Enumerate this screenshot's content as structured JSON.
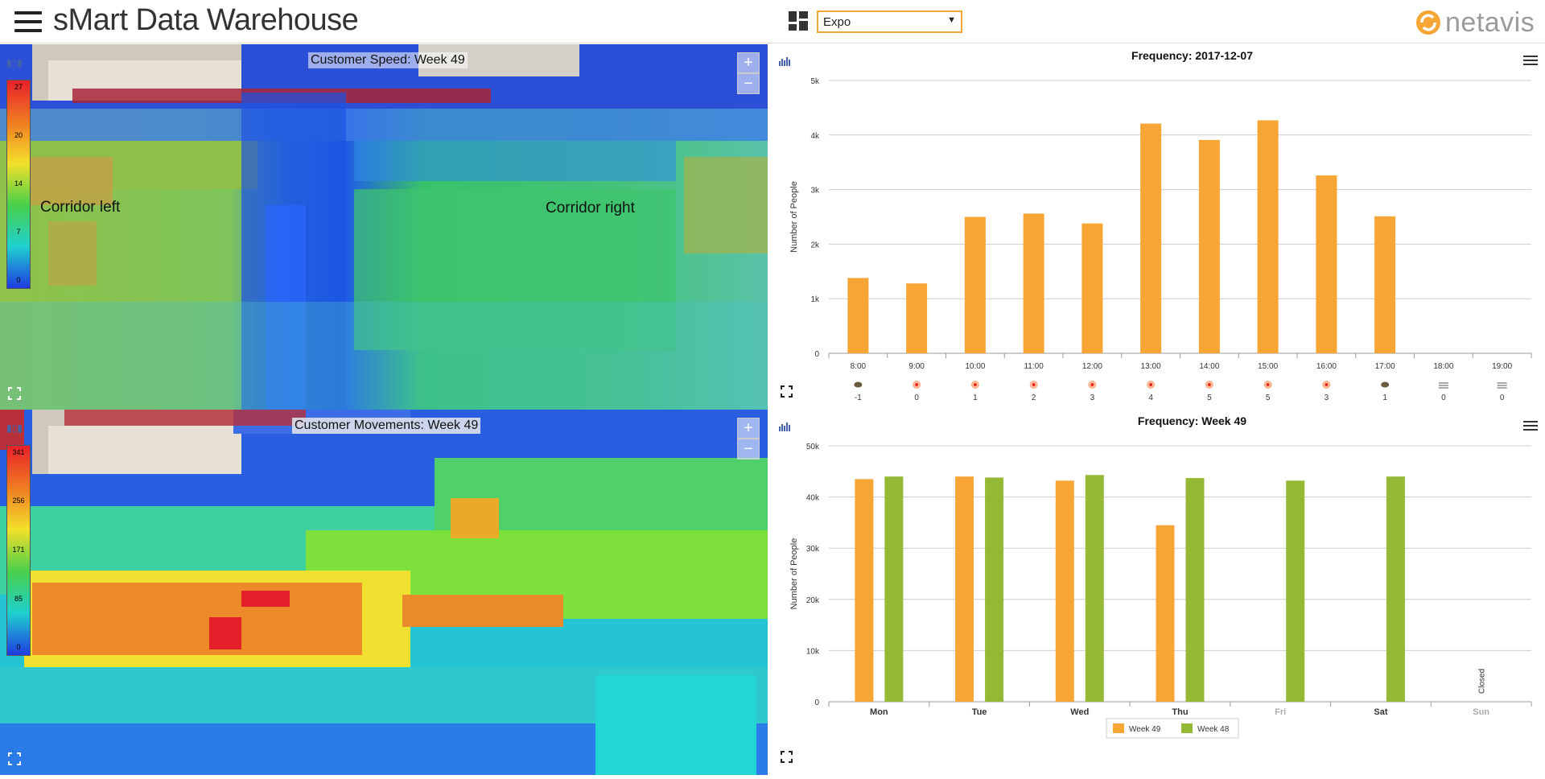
{
  "app": {
    "title": "sMart Data Warehouse"
  },
  "site_select": {
    "value": "Expo"
  },
  "logo": {
    "text": "netavis"
  },
  "heatmap_speed": {
    "title": "Customer Speed: Week 49",
    "legend_ticks": [
      "27",
      "20",
      "14",
      "7",
      "0"
    ],
    "zones": [
      "Corridor left",
      "Corridor right"
    ],
    "zoom_in": "+",
    "zoom_out": "−"
  },
  "heatmap_movements": {
    "title": "Customer Movements: Week 49",
    "legend_ticks": [
      "341",
      "256",
      "171",
      "85",
      "0"
    ],
    "zoom_in": "+",
    "zoom_out": "−"
  },
  "colors": {
    "orange": "#f7a535",
    "green": "#94ba35",
    "accent": "#f7a535"
  },
  "chart_data": [
    {
      "type": "bar",
      "title": "Frequency: 2017-12-07",
      "ylabel": "Number of People",
      "categories": [
        "8:00",
        "9:00",
        "10:00",
        "11:00",
        "12:00",
        "13:00",
        "14:00",
        "15:00",
        "16:00",
        "17:00",
        "18:00",
        "19:00"
      ],
      "values": [
        1380,
        1280,
        2500,
        2560,
        2380,
        4210,
        3910,
        4270,
        3260,
        2510,
        0,
        0
      ],
      "ylim": [
        0,
        5000
      ],
      "yticks": [
        "0",
        "1k",
        "2k",
        "3k",
        "4k",
        "5k"
      ],
      "weather_icons": [
        "cloud-icon",
        "sun-icon",
        "sun-icon",
        "sun-icon",
        "sun-icon",
        "sun-icon",
        "sun-icon",
        "sun-icon",
        "sun-icon",
        "cloud-icon",
        "fog-icon",
        "fog-icon"
      ],
      "temperatures": [
        "-1",
        "0",
        "1",
        "2",
        "3",
        "4",
        "5",
        "5",
        "3",
        "1",
        "0",
        "0"
      ]
    },
    {
      "type": "bar",
      "title": "Frequency: Week 49",
      "ylabel": "Number of People",
      "categories": [
        "Mon",
        "Tue",
        "Wed",
        "Thu",
        "Fri",
        "Sat",
        "Sun"
      ],
      "disabled_categories": [
        "Fri",
        "Sun"
      ],
      "series": [
        {
          "name": "Week 49",
          "values": [
            43500,
            44000,
            43200,
            34500,
            null,
            null,
            null
          ]
        },
        {
          "name": "Week 48",
          "values": [
            44000,
            43800,
            44300,
            43700,
            43200,
            44000,
            null
          ]
        }
      ],
      "annotations": [
        {
          "category": "Sun",
          "text": "Closed"
        }
      ],
      "ylim": [
        0,
        50000
      ],
      "yticks": [
        "0",
        "10k",
        "20k",
        "30k",
        "40k",
        "50k"
      ],
      "legend": "bottom-center"
    }
  ]
}
